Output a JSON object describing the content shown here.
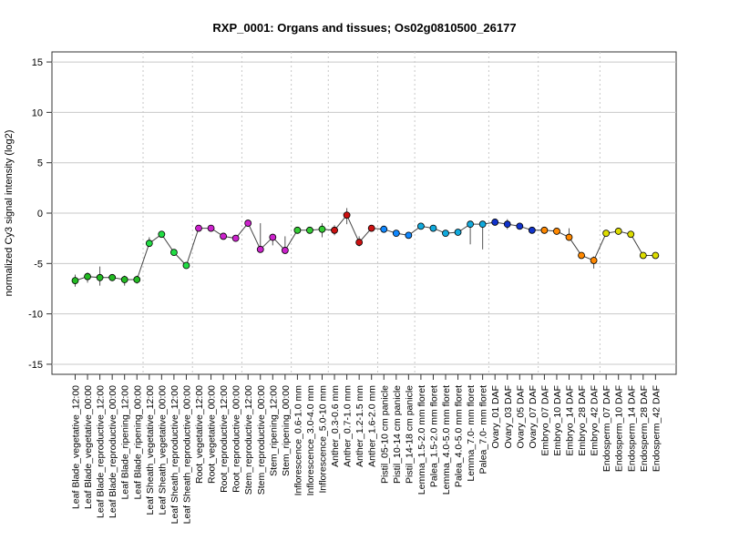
{
  "chart_data": {
    "type": "line",
    "title": "RXP_0001: Organs and tissues; Os02g0810500_26177",
    "xlabel": "",
    "ylabel": "normalized Cy3 signal intensity (log2)",
    "ylim": [
      -16,
      16
    ],
    "yticks": [
      15,
      10,
      5,
      0,
      -5,
      -10,
      -15
    ],
    "grid": "horizontal lines at y ticks; dotted vertical separators between tissue groups",
    "categories": [
      "Leaf Blade_vegetative_12:00",
      "Leaf Blade_vegetative_00:00",
      "Leaf Blade_reproductive_12:00",
      "Leaf Blade_reproductive_00:00",
      "Leaf Blade_ripening_12:00",
      "Leaf Blade_ripening_00:00",
      "Leaf Sheath_vegetative_12:00",
      "Leaf Sheath_vegetative_00:00",
      "Leaf Sheath_reproductive_12:00",
      "Leaf Sheath_reproductive_00:00",
      "Root_vegetative_12:00",
      "Root_vegetative_00:00",
      "Root_reproductive_12:00",
      "Root_reproductive_00:00",
      "Stem_reproductive_12:00",
      "Stem_reproductive_00:00",
      "Stem_ripening_12:00",
      "Stem_ripening_00:00",
      "Inflorescence_0.6-1.0 mm",
      "Inflorescence_3.0-4.0 mm",
      "Inflorescence_5.0-10 mm",
      "Anther_0.3-0.6 mm",
      "Anther_0.7-1.0 mm",
      "Anther_1.2-1.5 mm",
      "Anther_1.6-2.0 mm",
      "Pistil_05-10 cm panicle",
      "Pistil_10-14 cm panicle",
      "Pistil_14-18 cm panicle",
      "Lemma_1.5-2.0 mm floret",
      "Palea_1.5-2.0 mm floret",
      "Lemma_4.0-5.0 mm floret",
      "Palea_4.0-5.0 mm floret",
      "Lemma_7.0- mm floret",
      "Palea_7.0- mm floret",
      "Ovary_01 DAF",
      "Ovary_03 DAF",
      "Ovary_05 DAF",
      "Ovary_07 DAF",
      "Embryo_07 DAF",
      "Embryo_10 DAF",
      "Embryo_14 DAF",
      "Embryo_28 DAF",
      "Embryo_42 DAF",
      "Endosperm_07 DAF",
      "Endosperm_10 DAF",
      "Endosperm_14 DAF",
      "Endosperm_28 DAF",
      "Endosperm_42 DAF"
    ],
    "values": [
      -6.7,
      -6.3,
      -6.4,
      -6.4,
      -6.6,
      -6.6,
      -3.0,
      -2.1,
      -3.9,
      -5.2,
      -1.5,
      -1.5,
      -2.3,
      -2.5,
      -1.0,
      -3.6,
      -2.4,
      -3.7,
      -1.7,
      -1.7,
      -1.6,
      -1.7,
      -0.2,
      -2.9,
      -1.5,
      -1.6,
      -2.0,
      -2.2,
      -1.3,
      -1.5,
      -2.0,
      -1.9,
      -1.1,
      -1.1,
      -0.9,
      -1.1,
      -1.3,
      -1.7,
      -1.7,
      -1.8,
      -2.4,
      -4.2,
      -4.7,
      -2.0,
      -1.8,
      -2.1,
      -4.2,
      -4.2
    ],
    "error_low": [
      -7.3,
      -6.9,
      -7.2,
      -6.7,
      -7.2,
      -7.0,
      -3.2,
      -2.2,
      -4.0,
      -5.3,
      -1.6,
      -1.8,
      -2.4,
      -2.6,
      -1.1,
      -3.7,
      -3.2,
      -3.8,
      -1.8,
      -1.9,
      -2.4,
      -2.2,
      -1.1,
      -3.3,
      -1.8,
      -1.7,
      -2.1,
      -2.3,
      -1.4,
      -1.6,
      -2.1,
      -2.0,
      -3.1,
      -3.6,
      -1.0,
      -1.6,
      -1.6,
      -1.8,
      -1.8,
      -1.9,
      -2.6,
      -4.3,
      -5.5,
      -2.1,
      -1.9,
      -2.2,
      -4.4,
      -4.4
    ],
    "error_high": [
      -6.1,
      -5.9,
      -5.3,
      -6.2,
      -6.2,
      -6.2,
      -2.4,
      -2.0,
      -3.8,
      -5.1,
      -1.4,
      -1.3,
      -2.2,
      -2.4,
      -0.9,
      -1.0,
      -2.1,
      -2.3,
      -1.6,
      -1.4,
      -1.0,
      -1.2,
      0.5,
      -2.3,
      -1.3,
      -1.5,
      -1.9,
      -2.1,
      -1.2,
      -1.4,
      -1.9,
      -1.8,
      -0.9,
      -0.9,
      -0.8,
      -0.6,
      -1.1,
      -1.6,
      -1.5,
      -1.7,
      -1.5,
      -4.1,
      -4.3,
      -1.9,
      -1.6,
      -2.0,
      -4.0,
      -4.1
    ],
    "colors": [
      "#22bb22",
      "#22bb22",
      "#22bb22",
      "#22bb22",
      "#22bb22",
      "#22bb22",
      "#22dd44",
      "#22dd44",
      "#22dd44",
      "#22dd44",
      "#cc22cc",
      "#cc22cc",
      "#cc22cc",
      "#cc22cc",
      "#cc22cc",
      "#cc22cc",
      "#cc22cc",
      "#cc22cc",
      "#33cc33",
      "#33cc33",
      "#33cc33",
      "#cc1111",
      "#cc1111",
      "#cc1111",
      "#cc1111",
      "#1188ff",
      "#1188ff",
      "#1188ff",
      "#11aadd",
      "#11aadd",
      "#11aadd",
      "#11aadd",
      "#11aadd",
      "#11aadd",
      "#1133cc",
      "#1133cc",
      "#1133cc",
      "#1133cc",
      "#ff8800",
      "#ff8800",
      "#ff8800",
      "#ff8800",
      "#ff8800",
      "#dddd00",
      "#dddd00",
      "#dddd00",
      "#dddd00",
      "#dddd00"
    ],
    "group_boundaries_after_index": [
      5,
      9,
      13,
      17,
      20,
      24,
      27,
      33,
      37,
      42
    ]
  }
}
